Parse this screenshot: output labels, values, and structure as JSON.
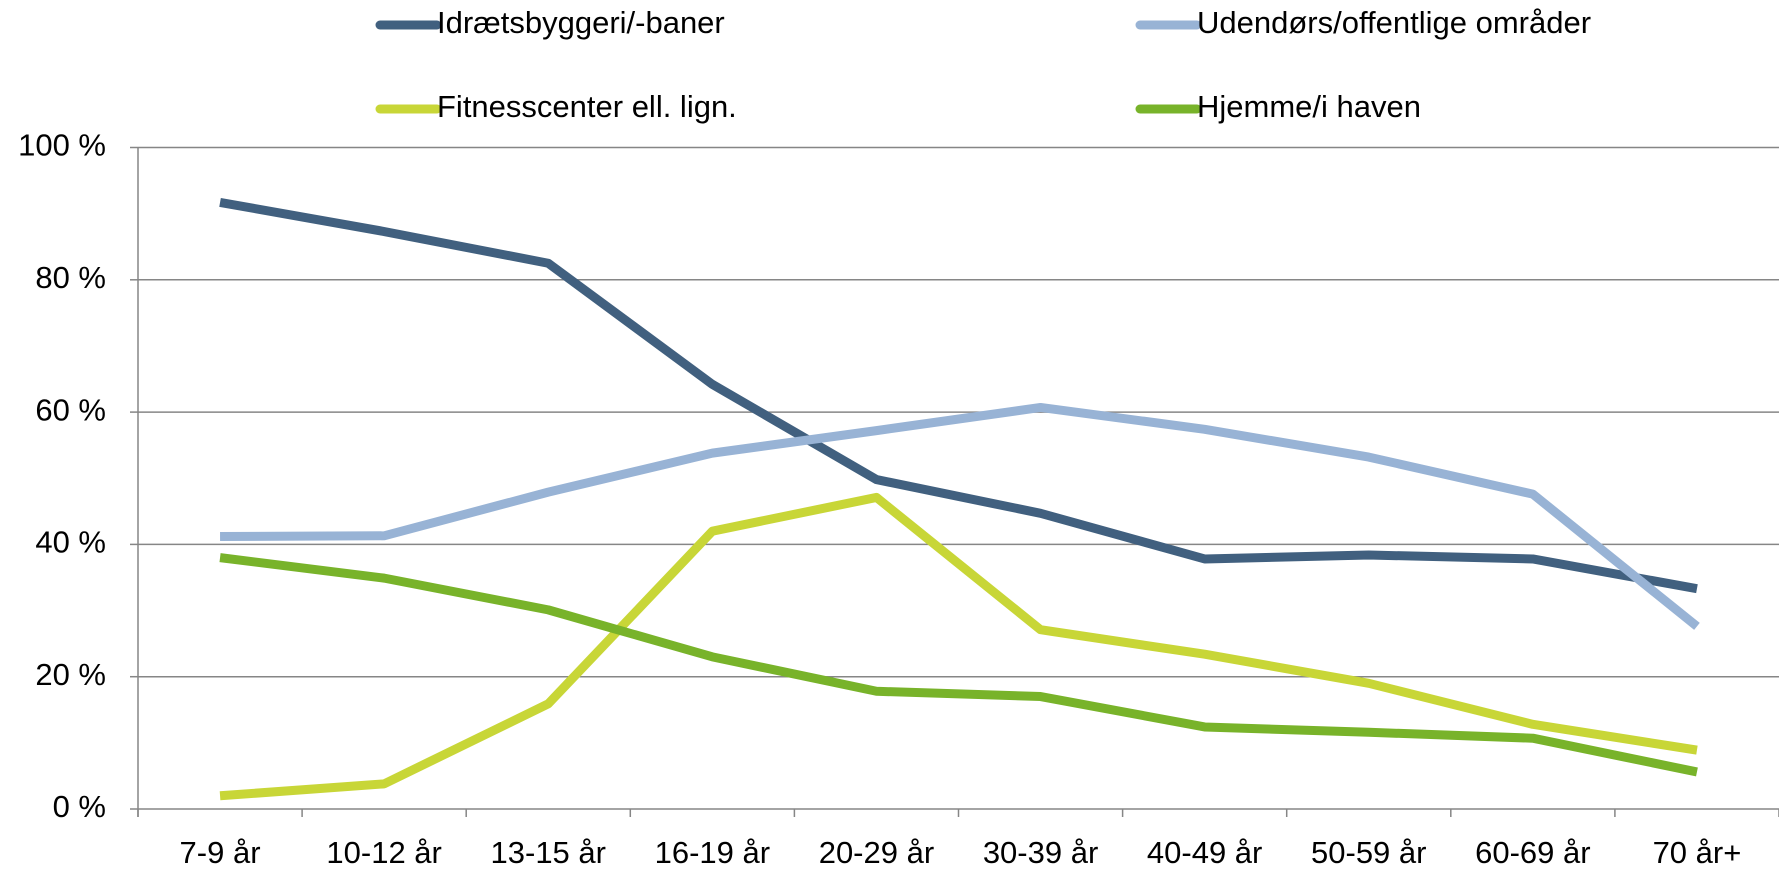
{
  "chart_data": {
    "type": "line",
    "categories": [
      "7-9 år",
      "10-12 år",
      "13-15 år",
      "16-19 år",
      "20-29 år",
      "30-39 år",
      "40-49 år",
      "50-59 år",
      "60-69 år",
      "70 år+"
    ],
    "series": [
      {
        "name": "Idrætsbyggeri/-baner",
        "color": "#41607f",
        "values": [
          91.7,
          87.3,
          82.5,
          64.2,
          49.8,
          44.7,
          37.8,
          38.4,
          37.8,
          33.3
        ]
      },
      {
        "name": "Udendørs/offentlige områder",
        "color": "#98b3d5",
        "values": [
          41.2,
          41.3,
          47.9,
          53.8,
          57.2,
          60.7,
          57.4,
          53.2,
          47.6,
          27.6
        ]
      },
      {
        "name": "Fitnesscenter ell. lign.",
        "color": "#c8d637",
        "values": [
          2.0,
          3.8,
          15.9,
          42.0,
          47.1,
          27.1,
          23.4,
          19.0,
          12.8,
          8.9
        ]
      },
      {
        "name": "Hjemme/i haven",
        "color": "#78b32a",
        "values": [
          38.0,
          34.9,
          30.1,
          23.0,
          17.8,
          17.0,
          12.4,
          11.6,
          10.7,
          5.6
        ]
      }
    ],
    "ylim": [
      0,
      100
    ],
    "yticks": [
      {
        "value": 0,
        "label": "0 %"
      },
      {
        "value": 20,
        "label": "20 %"
      },
      {
        "value": 40,
        "label": "40 %"
      },
      {
        "value": 60,
        "label": "60 %"
      },
      {
        "value": 80,
        "label": "80 %"
      },
      {
        "value": 100,
        "label": "100 %"
      }
    ],
    "grid": true
  }
}
